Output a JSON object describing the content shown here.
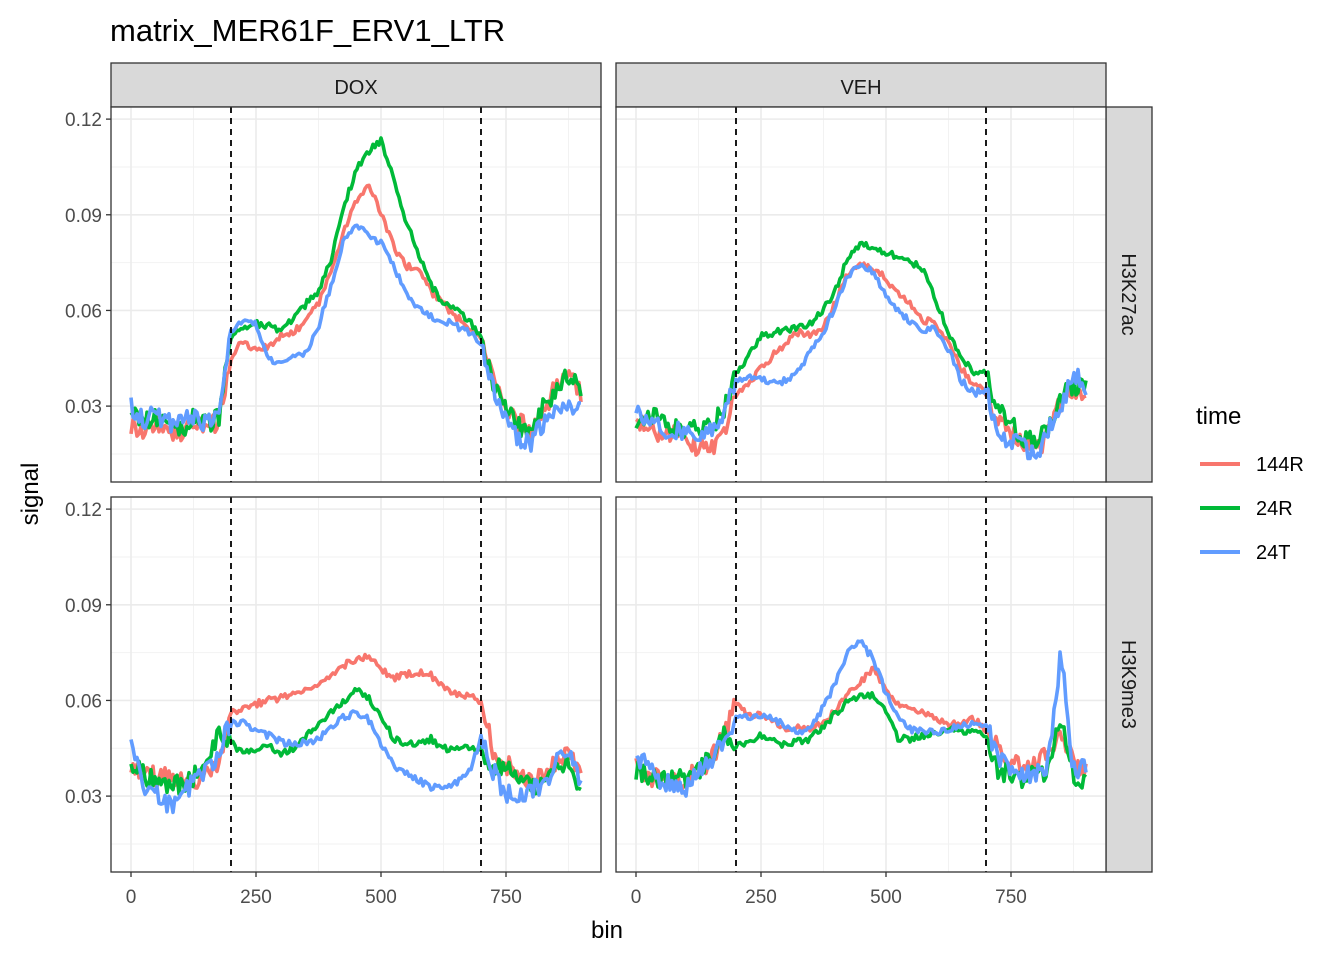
{
  "chart_data": {
    "type": "line",
    "title": "matrix_MER61F_ERV1_LTR",
    "xlabel": "bin",
    "ylabel": "signal",
    "xlim": [
      -40,
      940
    ],
    "ylim": [
      0.0062,
      0.1238
    ],
    "x_ticks": [
      0,
      250,
      500,
      750
    ],
    "y_ticks": [
      0.03,
      0.06,
      0.09,
      0.12
    ],
    "vlines": [
      200,
      700
    ],
    "grid": true,
    "legend": {
      "title": "time",
      "position": "right"
    },
    "colors": {
      "144R": "#F8766D",
      "24R": "#00BA38",
      "24T": "#619CFF"
    },
    "columns": [
      "DOX",
      "VEH"
    ],
    "rows": [
      "H3K27ac",
      "H3K9me3"
    ],
    "x": [
      0,
      25,
      50,
      75,
      100,
      125,
      150,
      175,
      200,
      225,
      250,
      275,
      300,
      325,
      350,
      375,
      400,
      425,
      450,
      475,
      500,
      525,
      550,
      575,
      600,
      625,
      650,
      675,
      700,
      725,
      750,
      775,
      800,
      825,
      850,
      875,
      900
    ],
    "panels": [
      {
        "column": "DOX",
        "row": "H3K27ac",
        "series": [
          {
            "name": "144R",
            "values": [
              0.024,
              0.022,
              0.025,
              0.021,
              0.022,
              0.024,
              0.023,
              0.025,
              0.045,
              0.051,
              0.047,
              0.049,
              0.052,
              0.053,
              0.057,
              0.062,
              0.072,
              0.085,
              0.094,
              0.099,
              0.091,
              0.08,
              0.074,
              0.073,
              0.066,
              0.062,
              0.058,
              0.055,
              0.051,
              0.038,
              0.028,
              0.025,
              0.022,
              0.028,
              0.036,
              0.042,
              0.033
            ]
          },
          {
            "name": "24R",
            "values": [
              0.028,
              0.025,
              0.026,
              0.023,
              0.022,
              0.027,
              0.025,
              0.026,
              0.052,
              0.055,
              0.056,
              0.055,
              0.054,
              0.057,
              0.062,
              0.066,
              0.076,
              0.092,
              0.104,
              0.11,
              0.113,
              0.102,
              0.088,
              0.078,
              0.068,
              0.062,
              0.061,
              0.057,
              0.051,
              0.036,
              0.03,
              0.024,
              0.022,
              0.03,
              0.035,
              0.04,
              0.034
            ]
          },
          {
            "name": "24T",
            "values": [
              0.03,
              0.026,
              0.027,
              0.025,
              0.025,
              0.026,
              0.024,
              0.027,
              0.053,
              0.057,
              0.056,
              0.045,
              0.043,
              0.045,
              0.047,
              0.055,
              0.068,
              0.082,
              0.087,
              0.084,
              0.081,
              0.074,
              0.065,
              0.061,
              0.058,
              0.057,
              0.055,
              0.053,
              0.05,
              0.036,
              0.026,
              0.02,
              0.019,
              0.025,
              0.028,
              0.03,
              0.031
            ]
          }
        ]
      },
      {
        "column": "VEH",
        "row": "H3K27ac",
        "series": [
          {
            "name": "144R",
            "values": [
              0.025,
              0.023,
              0.021,
              0.021,
              0.02,
              0.017,
              0.016,
              0.021,
              0.034,
              0.037,
              0.042,
              0.046,
              0.05,
              0.053,
              0.052,
              0.055,
              0.063,
              0.072,
              0.074,
              0.073,
              0.07,
              0.065,
              0.062,
              0.057,
              0.056,
              0.05,
              0.042,
              0.037,
              0.034,
              0.025,
              0.022,
              0.018,
              0.016,
              0.021,
              0.032,
              0.036,
              0.031
            ]
          },
          {
            "name": "24R",
            "values": [
              0.026,
              0.026,
              0.026,
              0.023,
              0.023,
              0.022,
              0.024,
              0.028,
              0.04,
              0.046,
              0.052,
              0.053,
              0.054,
              0.055,
              0.056,
              0.06,
              0.067,
              0.077,
              0.081,
              0.08,
              0.078,
              0.077,
              0.075,
              0.073,
              0.063,
              0.053,
              0.045,
              0.041,
              0.04,
              0.028,
              0.025,
              0.02,
              0.02,
              0.023,
              0.033,
              0.036,
              0.035
            ]
          },
          {
            "name": "24T",
            "values": [
              0.028,
              0.026,
              0.024,
              0.022,
              0.023,
              0.022,
              0.023,
              0.027,
              0.038,
              0.039,
              0.039,
              0.037,
              0.038,
              0.041,
              0.048,
              0.053,
              0.062,
              0.071,
              0.074,
              0.072,
              0.065,
              0.06,
              0.056,
              0.054,
              0.054,
              0.048,
              0.038,
              0.034,
              0.035,
              0.022,
              0.019,
              0.017,
              0.014,
              0.022,
              0.03,
              0.04,
              0.036
            ]
          }
        ]
      },
      {
        "column": "DOX",
        "row": "H3K9me3",
        "series": [
          {
            "name": "144R",
            "values": [
              0.04,
              0.038,
              0.036,
              0.037,
              0.035,
              0.034,
              0.038,
              0.041,
              0.056,
              0.058,
              0.059,
              0.06,
              0.061,
              0.062,
              0.064,
              0.065,
              0.068,
              0.071,
              0.073,
              0.074,
              0.07,
              0.067,
              0.068,
              0.069,
              0.068,
              0.064,
              0.062,
              0.061,
              0.06,
              0.044,
              0.04,
              0.037,
              0.034,
              0.036,
              0.041,
              0.043,
              0.039
            ]
          },
          {
            "name": "24R",
            "values": [
              0.04,
              0.037,
              0.034,
              0.033,
              0.034,
              0.036,
              0.039,
              0.05,
              0.047,
              0.043,
              0.045,
              0.046,
              0.043,
              0.045,
              0.049,
              0.052,
              0.056,
              0.06,
              0.063,
              0.061,
              0.055,
              0.048,
              0.046,
              0.047,
              0.048,
              0.045,
              0.045,
              0.045,
              0.045,
              0.039,
              0.038,
              0.036,
              0.033,
              0.034,
              0.038,
              0.04,
              0.033
            ]
          },
          {
            "name": "24T",
            "values": [
              0.045,
              0.033,
              0.031,
              0.027,
              0.03,
              0.035,
              0.038,
              0.044,
              0.053,
              0.053,
              0.051,
              0.049,
              0.047,
              0.046,
              0.047,
              0.048,
              0.052,
              0.055,
              0.056,
              0.054,
              0.046,
              0.04,
              0.037,
              0.035,
              0.033,
              0.033,
              0.034,
              0.037,
              0.048,
              0.038,
              0.03,
              0.031,
              0.032,
              0.033,
              0.041,
              0.046,
              0.035
            ]
          }
        ]
      },
      {
        "column": "VEH",
        "row": "H3K9me3",
        "series": [
          {
            "name": "144R",
            "values": [
              0.041,
              0.036,
              0.035,
              0.034,
              0.035,
              0.038,
              0.041,
              0.049,
              0.059,
              0.055,
              0.056,
              0.054,
              0.051,
              0.052,
              0.051,
              0.053,
              0.057,
              0.063,
              0.066,
              0.07,
              0.063,
              0.059,
              0.058,
              0.056,
              0.055,
              0.052,
              0.053,
              0.054,
              0.051,
              0.045,
              0.041,
              0.039,
              0.04,
              0.043,
              0.05,
              0.041,
              0.038
            ]
          },
          {
            "name": "24R",
            "values": [
              0.038,
              0.036,
              0.034,
              0.036,
              0.035,
              0.038,
              0.042,
              0.049,
              0.046,
              0.046,
              0.049,
              0.047,
              0.046,
              0.047,
              0.048,
              0.052,
              0.056,
              0.06,
              0.061,
              0.062,
              0.056,
              0.048,
              0.048,
              0.049,
              0.05,
              0.051,
              0.05,
              0.05,
              0.049,
              0.038,
              0.037,
              0.035,
              0.037,
              0.038,
              0.055,
              0.036,
              0.033
            ]
          },
          {
            "name": "24T",
            "values": [
              0.042,
              0.04,
              0.035,
              0.033,
              0.033,
              0.038,
              0.041,
              0.048,
              0.054,
              0.055,
              0.055,
              0.054,
              0.052,
              0.05,
              0.052,
              0.058,
              0.066,
              0.076,
              0.078,
              0.073,
              0.062,
              0.055,
              0.051,
              0.05,
              0.05,
              0.051,
              0.052,
              0.053,
              0.052,
              0.042,
              0.038,
              0.036,
              0.037,
              0.04,
              0.075,
              0.038,
              0.04
            ]
          }
        ]
      }
    ]
  }
}
